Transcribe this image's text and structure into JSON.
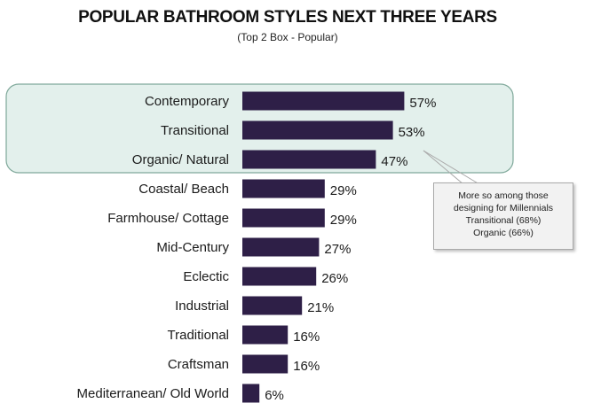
{
  "chart_data": {
    "type": "bar",
    "orientation": "horizontal",
    "title": "POPULAR BATHROOM STYLES NEXT THREE YEARS",
    "subtitle": "(Top 2 Box - Popular)",
    "categories": [
      "Contemporary",
      "Transitional",
      "Organic/ Natural",
      "Coastal/ Beach",
      "Farmhouse/ Cottage",
      "Mid-Century",
      "Eclectic",
      "Industrial",
      "Traditional",
      "Craftsman",
      "Mediterranean/ Old World"
    ],
    "values": [
      57,
      53,
      47,
      29,
      29,
      27,
      26,
      21,
      16,
      16,
      6
    ],
    "value_labels": [
      "57%",
      "53%",
      "47%",
      "29%",
      "29%",
      "27%",
      "26%",
      "21%",
      "16%",
      "16%",
      "6%"
    ],
    "bar_color": "#2e1f47",
    "highlight_color": "#e3f0ec",
    "highlight_border_color": "#7fa89a",
    "highlighted_categories": [
      "Contemporary",
      "Transitional",
      "Organic/ Natural"
    ],
    "grid": false,
    "legend": "none",
    "annotation": {
      "lines": [
        "More so among those",
        "designing for Millennials",
        "Transitional (68%)",
        "Organic (66%)"
      ]
    }
  }
}
